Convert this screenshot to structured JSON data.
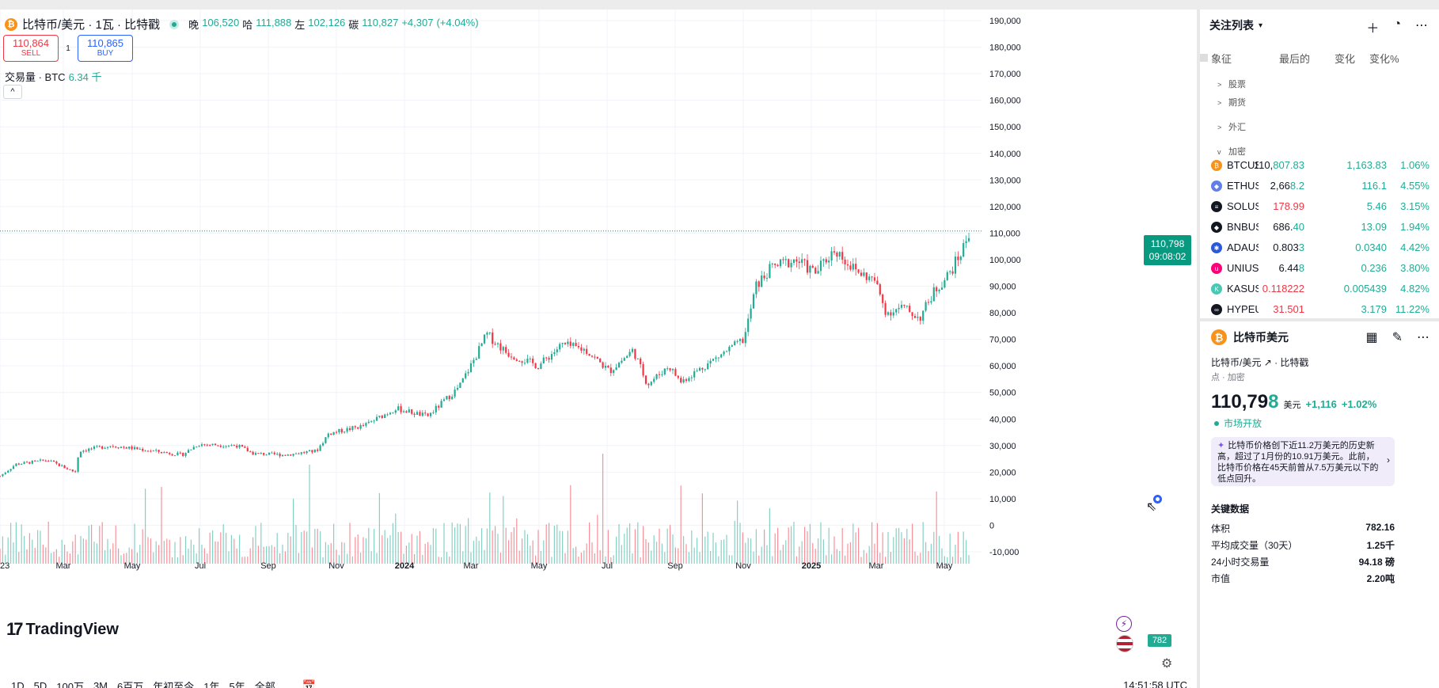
{
  "legend": {
    "coin_glyph": "₿",
    "title": "比特币/美元 · 1瓦 · 比特戳",
    "ohlc": [
      {
        "k": "晚",
        "v": "106,520"
      },
      {
        "k": "哈",
        "v": "111,888"
      },
      {
        "k": "左",
        "v": "102,126"
      },
      {
        "k": "碳",
        "v": "110,827"
      }
    ],
    "change": "+4,307",
    "change_pct": "(+4.04%)"
  },
  "trade": {
    "sell_price": "110,864",
    "sell_label": "SELL",
    "spread": "1",
    "buy_price": "110,865",
    "buy_label": "BUY"
  },
  "volume_legend": {
    "label": "交易量 · BTC",
    "value": "6.34 千"
  },
  "price_axis": [
    "190,000",
    "180,000",
    "170,000",
    "160,000",
    "150,000",
    "140,000",
    "130,000",
    "120,000",
    "110,000",
    "100,000",
    "90,000",
    "80,000",
    "70,000",
    "60,000",
    "50,000",
    "40,000",
    "30,000",
    "20,000",
    "10,000",
    "0",
    "-10,000"
  ],
  "time_axis": [
    "23",
    "Mar",
    "May",
    "Jul",
    "Sep",
    "Nov",
    "2024",
    "Mar",
    "May",
    "Jul",
    "Sep",
    "Nov",
    "2025",
    "Mar",
    "May"
  ],
  "current_price": {
    "price": "110,798",
    "countdown": "09:08:02"
  },
  "volume_tag": "782",
  "logo": "TradingView",
  "timeframes": [
    "1D",
    "5D",
    "100万",
    "3M",
    "6百万",
    "年初至今",
    "1年",
    "5年",
    "全部"
  ],
  "utc_time": "14:51:58 UTC",
  "watchlist": {
    "title": "关注列表",
    "columns": {
      "symbol": "象征",
      "last": "最后的",
      "change": "变化",
      "change_pct": "变化%"
    },
    "sections": [
      "股票",
      "期货",
      "外汇",
      "加密"
    ],
    "rows": [
      {
        "symbol": "BTCUSD",
        "last_a": "110,",
        "last_b": "807.83",
        "change": "1,163.83",
        "pct": "1.06%",
        "color": "#f7931a",
        "glyph": "₿",
        "last_color": "dark"
      },
      {
        "symbol": "ETHUSD",
        "last_a": "2,66",
        "last_b": "8.2",
        "change": "116.1",
        "pct": "4.55%",
        "color": "#627eea",
        "glyph": "◆",
        "last_color": "dark"
      },
      {
        "symbol": "SOLUSD",
        "last_a": "178.99",
        "last_b": "",
        "change": "5.46",
        "pct": "3.15%",
        "color": "#131722",
        "glyph": "≡",
        "last_color": "red"
      },
      {
        "symbol": "BNBUSD",
        "last_a": "686.",
        "last_b": "40",
        "change": "13.09",
        "pct": "1.94%",
        "color": "#131722",
        "glyph": "◆",
        "last_color": "dark"
      },
      {
        "symbol": "ADAUSD",
        "last_a": "0.803",
        "last_b": "3",
        "change": "0.0340",
        "pct": "4.42%",
        "color": "#2a5ada",
        "glyph": "✱",
        "last_color": "dark"
      },
      {
        "symbol": "UNIUSD",
        "last_a": "6.44",
        "last_b": "8",
        "change": "0.236",
        "pct": "3.80%",
        "color": "#ff007a",
        "glyph": "u",
        "last_color": "dark"
      },
      {
        "symbol": "KASUSD",
        "last_a": "0.118222",
        "last_b": "",
        "change": "0.005439",
        "pct": "4.82%",
        "color": "#49c8b6",
        "glyph": "K",
        "last_color": "red"
      },
      {
        "symbol": "HYPEUSD",
        "last_a": "31.501",
        "last_b": "",
        "change": "3.179",
        "pct": "11.22%",
        "color": "#131722",
        "glyph": "∞",
        "last_color": "red"
      }
    ]
  },
  "details": {
    "name": "比特币美元",
    "pair": "比特币/美元",
    "exchange": "比特戳",
    "type": "点 · 加密",
    "price_main": "110,79",
    "price_last": "8",
    "currency": "美元",
    "change": "+1,116",
    "change_pct": "+1.02%",
    "status": "市场开放",
    "news": "比特币价格创下近11.2万美元的历史新高，超过了1月份的10.91万美元。此前，比特币价格在45天前曾从7.5万美元以下的低点回升。",
    "key_data_title": "关键数据",
    "key_data": [
      {
        "k": "体积",
        "v": "782.16"
      },
      {
        "k": "平均成交量（30天）",
        "v": "1.25千"
      },
      {
        "k": "24小时交易量",
        "v": "94.18 磅"
      },
      {
        "k": "市值",
        "v": "2.20吨"
      }
    ]
  },
  "colors": {
    "up": "#22ab94",
    "down": "#f23645",
    "brand": "#f7931a",
    "accent": "#2962ff"
  }
}
